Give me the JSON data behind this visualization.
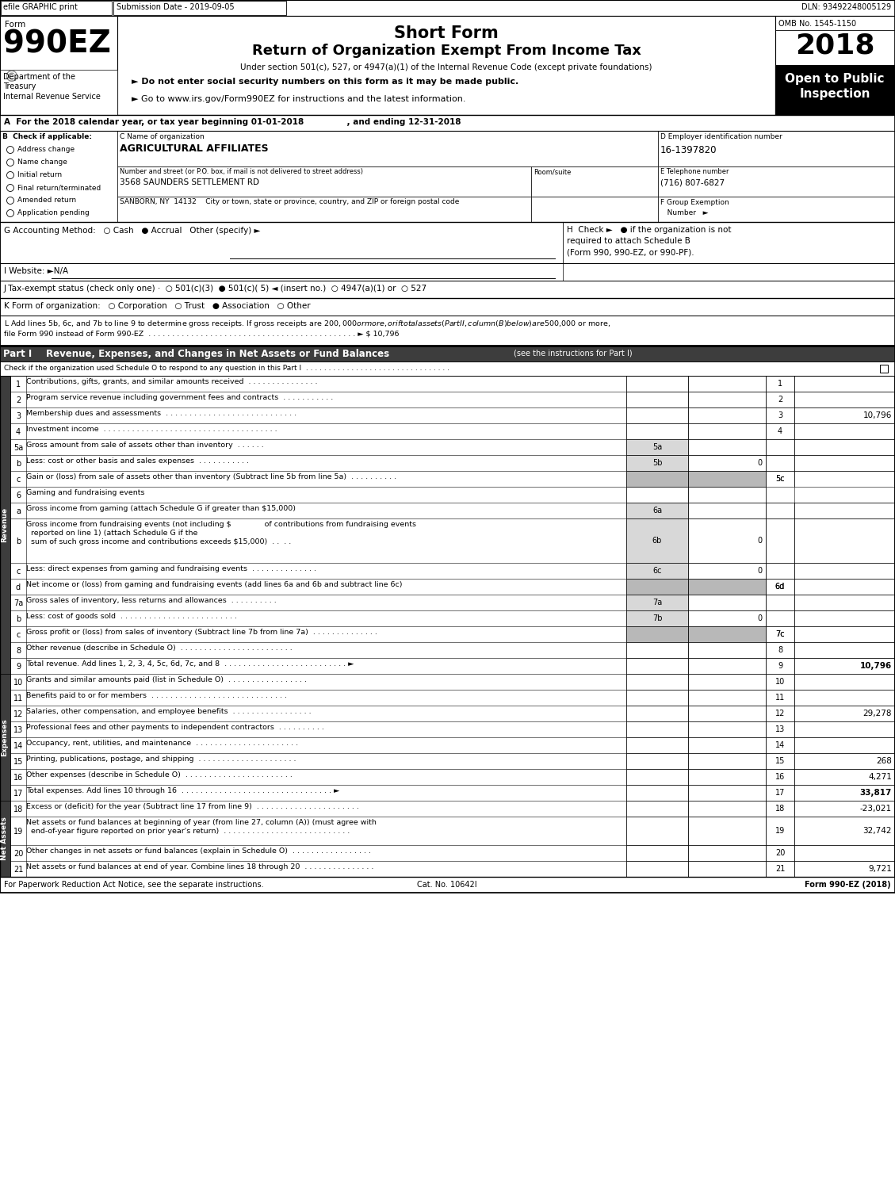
{
  "title_line1": "Short Form",
  "title_line2": "Return of Organization Exempt From Income Tax",
  "subtitle": "Under section 501(c), 527, or 4947(a)(1) of the Internal Revenue Code (except private foundations)",
  "form_number": "990EZ",
  "year": "2018",
  "omb": "OMB No. 1545-1150",
  "efile_text": "efile GRAPHIC print",
  "submission_date": "Submission Date - 2019-09-05",
  "dln": "DLN: 93492248005129",
  "dept_text": "Department of the\nTreasury\nInternal Revenue Service",
  "bullet1": "► Do not enter social security numbers on this form as it may be made public.",
  "bullet2": "► Go to www.irs.gov/Form990EZ for instructions and the latest information.",
  "section_A": "A  For the 2018 calendar year, or tax year beginning 01-01-2018               , and ending 12-31-2018",
  "org_name": "AGRICULTURAL AFFILIATES",
  "ein": "16-1397820",
  "street": "3568 SAUNDERS SETTLEMENT RD",
  "phone": "(716) 807-6827",
  "city": "SANBORN, NY  14132",
  "section_G": "G Accounting Method:   ○ Cash   ● Accrual   Other (specify) ►",
  "section_H_line1": "H  Check ►   ● if the organization is not",
  "section_H_line2": "required to attach Schedule B",
  "section_H_line3": "(Form 990, 990-EZ, or 990-PF).",
  "section_I": "I Website: ►N/A",
  "section_J": "J Tax-exempt status (check only one) ·  ○ 501(c)(3)  ● 501(c)( 5) ◄ (insert no.)  ○ 4947(a)(1) or  ○ 527",
  "section_K": "K Form of organization:   ○ Corporation   ○ Trust   ● Association   ○ Other",
  "section_L1": "L Add lines 5b, 6c, and 7b to line 9 to determine gross receipts. If gross receipts are $200,000 or more, or if total assets (Part II, column (B) below) are $500,000 or more,",
  "section_L2": "file Form 990 instead of Form 990-EZ  . . . . . . . . . . . . . . . . . . . . . . . . . . . . . . . . . . . . . . . . . . . . ► $ 10,796",
  "checkboxes_B": [
    "Address change",
    "Name change",
    "Initial return",
    "Final return/terminated",
    "Amended return",
    "Application pending"
  ],
  "rows": [
    {
      "num": "1",
      "label": "Contributions, gifts, grants, and similar amounts received  . . . . . . . . . . . . . . .",
      "has_ab": false,
      "ab_label": "",
      "ab_val": "",
      "value": "",
      "shade_ab": false,
      "bold": false,
      "section": "revenue"
    },
    {
      "num": "2",
      "label": "Program service revenue including government fees and contracts  . . . . . . . . . . .",
      "has_ab": false,
      "ab_label": "",
      "ab_val": "",
      "value": "",
      "shade_ab": false,
      "bold": false,
      "section": "revenue"
    },
    {
      "num": "3",
      "label": "Membership dues and assessments  . . . . . . . . . . . . . . . . . . . . . . . . . . . .",
      "has_ab": false,
      "ab_label": "",
      "ab_val": "",
      "value": "10,796",
      "shade_ab": false,
      "bold": false,
      "section": "revenue"
    },
    {
      "num": "4",
      "label": "Investment income  . . . . . . . . . . . . . . . . . . . . . . . . . . . . . . . . . . . . .",
      "has_ab": false,
      "ab_label": "",
      "ab_val": "",
      "value": "",
      "shade_ab": false,
      "bold": false,
      "section": "revenue"
    },
    {
      "num": "5a",
      "label": "Gross amount from sale of assets other than inventory  . . . . . .",
      "has_ab": true,
      "ab_label": "5a",
      "ab_val": "",
      "value": "",
      "shade_ab": false,
      "bold": false,
      "section": "revenue"
    },
    {
      "num": "b",
      "label": "Less: cost or other basis and sales expenses  . . . . . . . . . . .",
      "has_ab": true,
      "ab_label": "5b",
      "ab_val": "0",
      "value": "",
      "shade_ab": false,
      "bold": false,
      "section": "revenue"
    },
    {
      "num": "c",
      "label": "Gain or (loss) from sale of assets other than inventory (Subtract line 5b from line 5a)  . . . . . . . . . .",
      "has_ab": false,
      "ab_label": "5c",
      "ab_val": "",
      "value": "",
      "shade_ab": true,
      "bold": false,
      "section": "revenue"
    },
    {
      "num": "6",
      "label": "Gaming and fundraising events",
      "has_ab": false,
      "ab_label": "",
      "ab_val": "",
      "value": "",
      "shade_ab": false,
      "bold": false,
      "section": "revenue",
      "header_only": true
    },
    {
      "num": "a",
      "label": "Gross income from gaming (attach Schedule G if greater than $15,000)",
      "has_ab": true,
      "ab_label": "6a",
      "ab_val": "",
      "value": "",
      "shade_ab": false,
      "bold": false,
      "section": "revenue"
    },
    {
      "num": "b",
      "label": "Gross income from fundraising events (not including $              of contributions from fundraising events\n  reported on line 1) (attach Schedule G if the\n  sum of such gross income and contributions exceeds $15,000)  . .  . .",
      "has_ab": true,
      "ab_label": "6b",
      "ab_val": "0",
      "value": "",
      "shade_ab": false,
      "bold": false,
      "section": "revenue",
      "multiline": true
    },
    {
      "num": "c",
      "label": "Less: direct expenses from gaming and fundraising events  . . . . . . . . . . . . . .",
      "has_ab": true,
      "ab_label": "6c",
      "ab_val": "0",
      "value": "",
      "shade_ab": false,
      "bold": false,
      "section": "revenue"
    },
    {
      "num": "d",
      "label": "Net income or (loss) from gaming and fundraising events (add lines 6a and 6b and subtract line 6c)",
      "has_ab": false,
      "ab_label": "6d",
      "ab_val": "",
      "value": "",
      "shade_ab": true,
      "bold": false,
      "section": "revenue"
    },
    {
      "num": "7a",
      "label": "Gross sales of inventory, less returns and allowances  . . . . . . . . . .",
      "has_ab": true,
      "ab_label": "7a",
      "ab_val": "",
      "value": "",
      "shade_ab": false,
      "bold": false,
      "section": "revenue"
    },
    {
      "num": "b",
      "label": "Less: cost of goods sold  . . . . . . . . . . . . . . . . . . . . . . . . .",
      "has_ab": true,
      "ab_label": "7b",
      "ab_val": "0",
      "value": "",
      "shade_ab": false,
      "bold": false,
      "section": "revenue"
    },
    {
      "num": "c",
      "label": "Gross profit or (loss) from sales of inventory (Subtract line 7b from line 7a)  . . . . . . . . . . . . . .",
      "has_ab": false,
      "ab_label": "7c",
      "ab_val": "",
      "value": "",
      "shade_ab": true,
      "bold": false,
      "section": "revenue"
    },
    {
      "num": "8",
      "label": "Other revenue (describe in Schedule O)  . . . . . . . . . . . . . . . . . . . . . . . .",
      "has_ab": false,
      "ab_label": "",
      "ab_val": "",
      "value": "",
      "shade_ab": false,
      "bold": false,
      "section": "revenue"
    },
    {
      "num": "9",
      "label": "Total revenue. Add lines 1, 2, 3, 4, 5c, 6d, 7c, and 8  . . . . . . . . . . . . . . . . . . . . . . . . . . ►",
      "has_ab": false,
      "ab_label": "",
      "ab_val": "",
      "value": "10,796",
      "shade_ab": false,
      "bold": true,
      "section": "revenue"
    },
    {
      "num": "10",
      "label": "Grants and similar amounts paid (list in Schedule O)  . . . . . . . . . . . . . . . . .",
      "has_ab": false,
      "ab_label": "",
      "ab_val": "",
      "value": "",
      "shade_ab": false,
      "bold": false,
      "section": "expenses"
    },
    {
      "num": "11",
      "label": "Benefits paid to or for members  . . . . . . . . . . . . . . . . . . . . . . . . . . . . .",
      "has_ab": false,
      "ab_label": "",
      "ab_val": "",
      "value": "",
      "shade_ab": false,
      "bold": false,
      "section": "expenses"
    },
    {
      "num": "12",
      "label": "Salaries, other compensation, and employee benefits  . . . . . . . . . . . . . . . . .",
      "has_ab": false,
      "ab_label": "",
      "ab_val": "",
      "value": "29,278",
      "shade_ab": false,
      "bold": false,
      "section": "expenses"
    },
    {
      "num": "13",
      "label": "Professional fees and other payments to independent contractors  . . . . . . . . . .",
      "has_ab": false,
      "ab_label": "",
      "ab_val": "",
      "value": "",
      "shade_ab": false,
      "bold": false,
      "section": "expenses"
    },
    {
      "num": "14",
      "label": "Occupancy, rent, utilities, and maintenance  . . . . . . . . . . . . . . . . . . . . . .",
      "has_ab": false,
      "ab_label": "",
      "ab_val": "",
      "value": "",
      "shade_ab": false,
      "bold": false,
      "section": "expenses"
    },
    {
      "num": "15",
      "label": "Printing, publications, postage, and shipping  . . . . . . . . . . . . . . . . . . . . .",
      "has_ab": false,
      "ab_label": "",
      "ab_val": "",
      "value": "268",
      "shade_ab": false,
      "bold": false,
      "section": "expenses"
    },
    {
      "num": "16",
      "label": "Other expenses (describe in Schedule O)  . . . . . . . . . . . . . . . . . . . . . . .",
      "has_ab": false,
      "ab_label": "",
      "ab_val": "",
      "value": "4,271",
      "shade_ab": false,
      "bold": false,
      "section": "expenses"
    },
    {
      "num": "17",
      "label": "Total expenses. Add lines 10 through 16  . . . . . . . . . . . . . . . . . . . . . . . . . . . . . . . . ►",
      "has_ab": false,
      "ab_label": "",
      "ab_val": "",
      "value": "33,817",
      "shade_ab": false,
      "bold": true,
      "section": "expenses"
    },
    {
      "num": "18",
      "label": "Excess or (deficit) for the year (Subtract line 17 from line 9)  . . . . . . . . . . . . . . . . . . . . . .",
      "has_ab": false,
      "ab_label": "",
      "ab_val": "",
      "value": "-23,021",
      "shade_ab": false,
      "bold": false,
      "section": "netassets"
    },
    {
      "num": "19",
      "label": "Net assets or fund balances at beginning of year (from line 27, column (A)) (must agree with\n  end-of-year figure reported on prior year's return)  . . . . . . . . . . . . . . . . . . . . . . . . . . .",
      "has_ab": false,
      "ab_label": "",
      "ab_val": "",
      "value": "32,742",
      "shade_ab": false,
      "bold": false,
      "section": "netassets",
      "multiline": true
    },
    {
      "num": "20",
      "label": "Other changes in net assets or fund balances (explain in Schedule O)  . . . . . . . . . . . . . . . . .",
      "has_ab": false,
      "ab_label": "",
      "ab_val": "",
      "value": "",
      "shade_ab": false,
      "bold": false,
      "section": "netassets"
    },
    {
      "num": "21",
      "label": "Net assets or fund balances at end of year. Combine lines 18 through 20  . . . . . . . . . . . . . . .",
      "has_ab": false,
      "ab_label": "",
      "ab_val": "",
      "value": "9,721",
      "shade_ab": false,
      "bold": false,
      "section": "netassets"
    }
  ],
  "footer_left": "For Paperwork Reduction Act Notice, see the separate instructions.",
  "footer_cat": "Cat. No. 10642I",
  "footer_right": "Form 990-EZ (2018)"
}
